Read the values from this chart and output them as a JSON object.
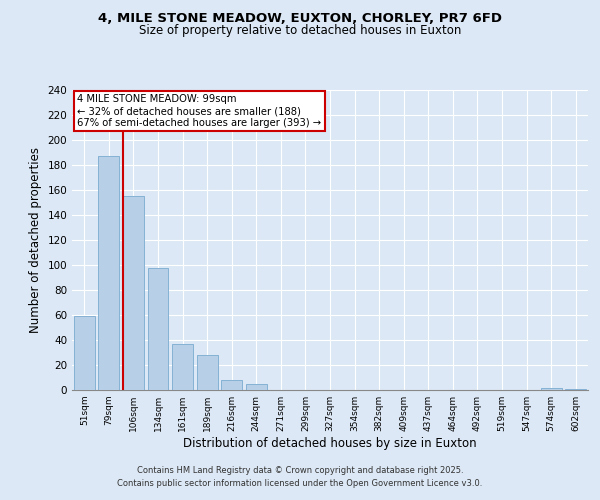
{
  "title_line1": "4, MILE STONE MEADOW, EUXTON, CHORLEY, PR7 6FD",
  "title_line2": "Size of property relative to detached houses in Euxton",
  "xlabel": "Distribution of detached houses by size in Euxton",
  "ylabel": "Number of detached properties",
  "categories": [
    "51sqm",
    "79sqm",
    "106sqm",
    "134sqm",
    "161sqm",
    "189sqm",
    "216sqm",
    "244sqm",
    "271sqm",
    "299sqm",
    "327sqm",
    "354sqm",
    "382sqm",
    "409sqm",
    "437sqm",
    "464sqm",
    "492sqm",
    "519sqm",
    "547sqm",
    "574sqm",
    "602sqm"
  ],
  "values": [
    59,
    187,
    155,
    98,
    37,
    28,
    8,
    5,
    0,
    0,
    0,
    0,
    0,
    0,
    0,
    0,
    0,
    0,
    0,
    2,
    1
  ],
  "bar_color": "#b8cfe8",
  "bar_edge_color": "#7aaad0",
  "annotation_title": "4 MILE STONE MEADOW: 99sqm",
  "annotation_line1": "← 32% of detached houses are smaller (188)",
  "annotation_line2": "67% of semi-detached houses are larger (393) →",
  "red_line_color": "#cc0000",
  "annotation_box_color": "#ffffff",
  "annotation_box_edge": "#cc0000",
  "ylim": [
    0,
    240
  ],
  "yticks": [
    0,
    20,
    40,
    60,
    80,
    100,
    120,
    140,
    160,
    180,
    200,
    220,
    240
  ],
  "footer_line1": "Contains HM Land Registry data © Crown copyright and database right 2025.",
  "footer_line2": "Contains public sector information licensed under the Open Government Licence v3.0.",
  "bg_color": "#dce8f5",
  "plot_bg_color": "#dce8f5",
  "red_line_xdata": 1.58
}
